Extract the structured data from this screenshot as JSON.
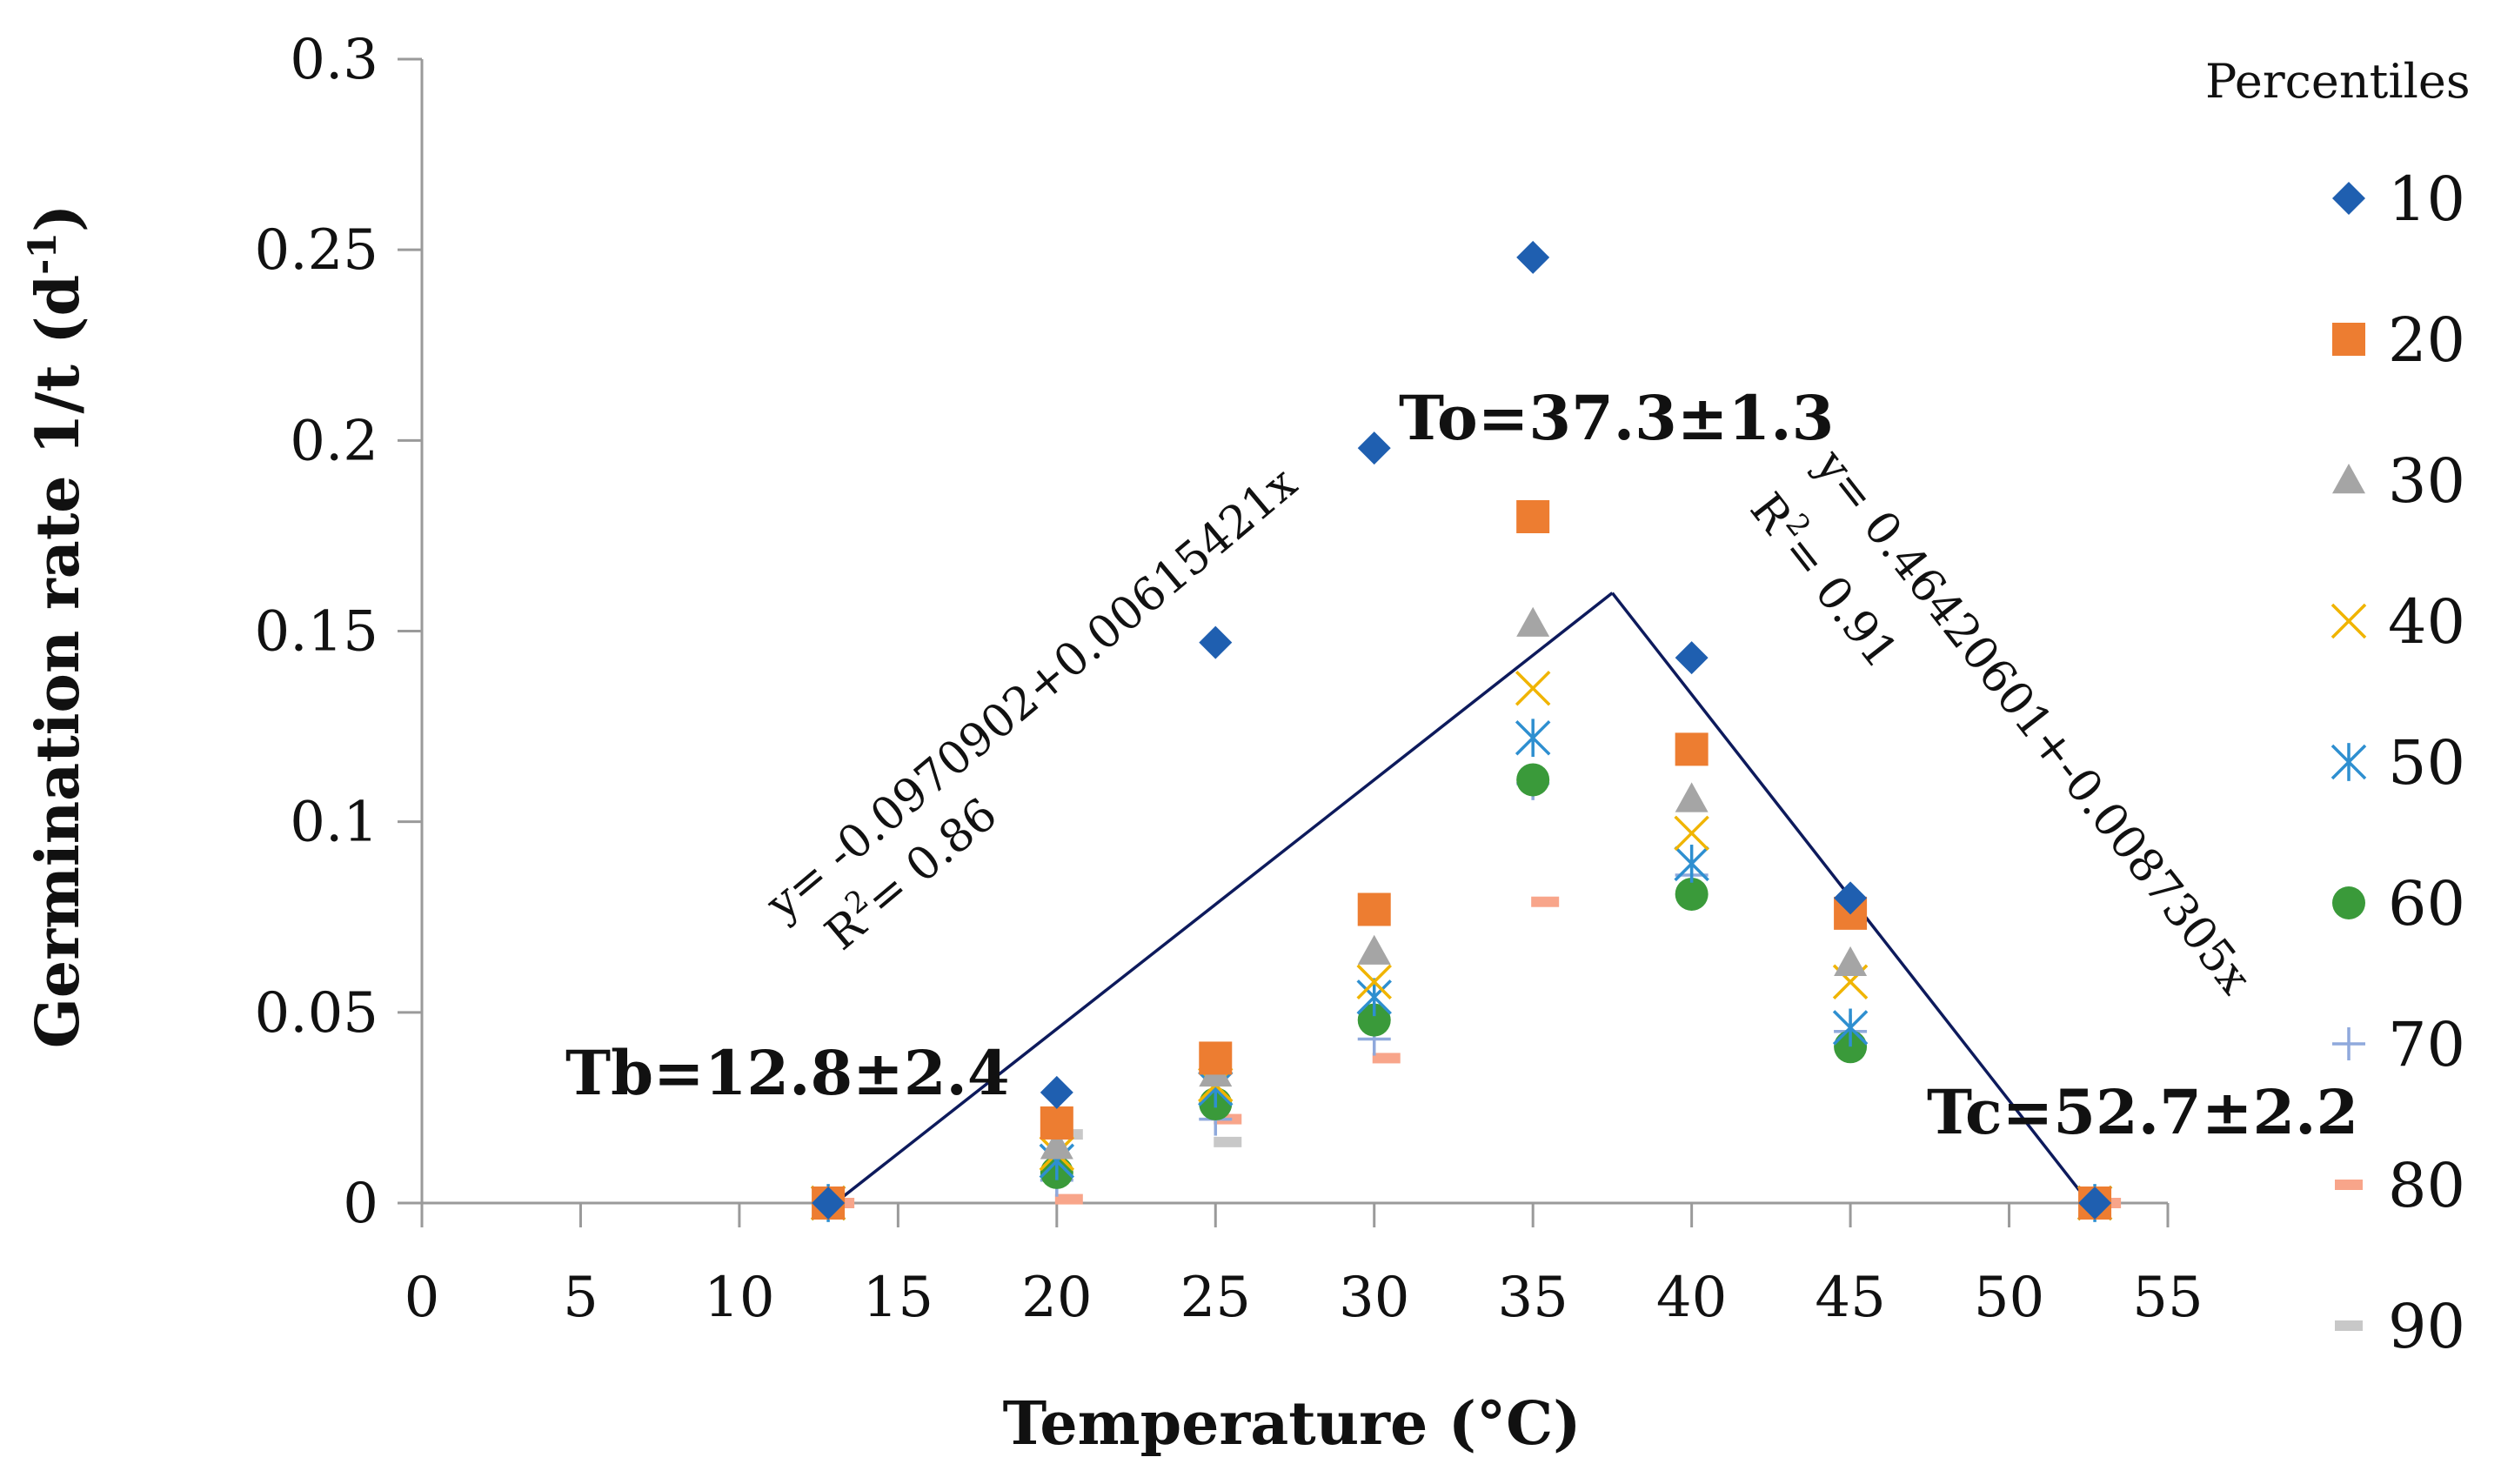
{
  "chart_data": {
    "type": "scatter",
    "xlabel": "Temperature (°C)",
    "ylabel_main": "Germination rate 1/t (d",
    "ylabel_sup": "-1",
    "ylabel_close": ")",
    "xlim": [
      0,
      55
    ],
    "ylim": [
      0,
      0.3
    ],
    "x_ticks": [
      0,
      5,
      10,
      15,
      20,
      25,
      30,
      35,
      40,
      45,
      50,
      55
    ],
    "y_ticks": [
      0,
      0.05,
      0.1,
      0.15,
      0.2,
      0.25,
      0.3
    ],
    "x_tick_labels": [
      "0",
      "5",
      "10",
      "15",
      "20",
      "25",
      "30",
      "35",
      "40",
      "45",
      "50",
      "55"
    ],
    "y_tick_labels": [
      "0",
      "0.05",
      "0.1",
      "0.15",
      "0.2",
      "0.25",
      "0.3"
    ],
    "grid": false,
    "legend": {
      "title": "Percentiles",
      "position": "right"
    },
    "x": [
      12.8,
      20,
      25,
      30,
      35,
      40,
      45,
      52.7
    ],
    "series": [
      {
        "name": "10",
        "marker": "diamond",
        "color": "#1f5fb0",
        "values": [
          0,
          0.029,
          0.147,
          0.198,
          0.248,
          0.143,
          0.08,
          0
        ]
      },
      {
        "name": "20",
        "marker": "square",
        "color": "#ed7d31",
        "values": [
          0,
          0.021,
          0.038,
          0.077,
          0.18,
          0.119,
          0.076,
          0
        ]
      },
      {
        "name": "30",
        "marker": "triangle",
        "color": "#a5a5a5",
        "values": [
          0,
          0.015,
          0.034,
          0.066,
          0.152,
          0.106,
          0.063,
          0
        ]
      },
      {
        "name": "40",
        "marker": "x",
        "color": "#f0b400",
        "values": [
          0,
          0.013,
          0.031,
          0.058,
          0.135,
          0.097,
          0.058,
          0
        ]
      },
      {
        "name": "50",
        "marker": "star",
        "color": "#2e8fd0",
        "values": [
          0,
          0.011,
          0.03,
          0.054,
          0.122,
          0.089,
          0.046,
          0
        ]
      },
      {
        "name": "60",
        "marker": "circle",
        "color": "#3a9a3a",
        "values": [
          0,
          0.008,
          0.026,
          0.048,
          0.111,
          0.081,
          0.041,
          0
        ]
      },
      {
        "name": "70",
        "marker": "plus",
        "color": "#8fa9dc",
        "values": [
          0,
          0.006,
          0.022,
          0.043,
          0.11,
          0.086,
          0.045,
          0
        ]
      },
      {
        "name": "80",
        "marker": "dash",
        "color": "#f8a58a",
        "values": [
          0,
          0.001,
          0.022,
          0.038,
          0.079,
          null,
          null,
          0
        ]
      },
      {
        "name": "90",
        "marker": "dash",
        "color": "#c8c8c8",
        "values": [
          0,
          0.018,
          0.016,
          null,
          null,
          null,
          null,
          0
        ]
      }
    ],
    "fit_lines": [
      {
        "x": [
          12.4,
          37.5
        ],
        "y": [
          -0.004,
          0.16
        ],
        "color": "#0d1a5c"
      },
      {
        "x": [
          37.5,
          52.9
        ],
        "y": [
          0.16,
          -0.004
        ],
        "color": "#0d1a5c"
      }
    ],
    "annotations": {
      "tb": "Tb=12.8±2.4",
      "to": "To=37.3±1.3",
      "tc": "Tc=52.7±2.2",
      "eq_left": "y= -0.0970902+0.00615421x",
      "r2_left": "= 0.86",
      "eq_right": "y= 0.46420601+-0.0087305x",
      "r2_right": "= 0.91",
      "r2_symbol": "R",
      "r2_sup": "2"
    }
  }
}
